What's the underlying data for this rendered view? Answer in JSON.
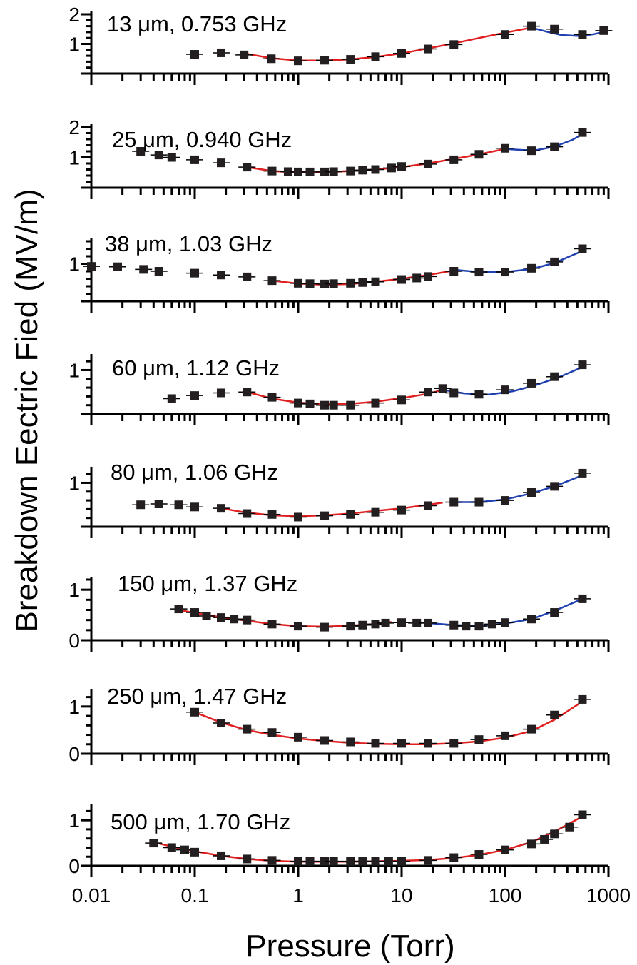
{
  "figure": {
    "ylabel": "Breakdown Eectric Fied (MV/m)",
    "xlabel": "Pressure (Torr)",
    "x_tick_labels": [
      "0.01",
      "0.1",
      "1",
      "10",
      "100",
      "1000"
    ]
  },
  "chart_data": [
    {
      "type": "scatter",
      "label": "13 μm, 0.753 GHz",
      "x_scale": "log",
      "xlim": [
        0.01,
        1000
      ],
      "ylim": [
        0,
        2
      ],
      "y_ticks": [
        1,
        2
      ],
      "points": {
        "x": [
          0.1,
          0.18,
          0.3,
          0.55,
          1.0,
          1.8,
          3.2,
          5.6,
          10,
          18,
          32,
          100,
          180,
          300,
          560,
          900
        ],
        "y": [
          0.65,
          0.7,
          0.63,
          0.5,
          0.43,
          0.45,
          0.48,
          0.57,
          0.68,
          0.83,
          0.98,
          1.32,
          1.6,
          1.5,
          1.32,
          1.45
        ]
      },
      "fits": [
        {
          "color": "#e02020",
          "x": [
            0.3,
            0.55,
            1.0,
            1.8,
            3.2,
            5.6,
            10,
            18,
            32,
            56,
            100,
            180
          ],
          "y": [
            0.68,
            0.52,
            0.44,
            0.44,
            0.48,
            0.56,
            0.68,
            0.85,
            1.02,
            1.2,
            1.38,
            1.55
          ]
        },
        {
          "color": "#2040b0",
          "x": [
            180,
            250,
            350,
            500,
            700,
            900
          ],
          "y": [
            1.55,
            1.42,
            1.3,
            1.27,
            1.32,
            1.4
          ]
        }
      ]
    },
    {
      "type": "scatter",
      "label": "25 μm, 0.940 GHz",
      "x_scale": "log",
      "xlim": [
        0.01,
        1000
      ],
      "ylim": [
        0,
        2
      ],
      "y_ticks": [
        1,
        2
      ],
      "points": {
        "x": [
          0.03,
          0.045,
          0.06,
          0.1,
          0.18,
          0.32,
          0.56,
          0.8,
          1.0,
          1.3,
          1.8,
          2.2,
          3.2,
          4.2,
          5.6,
          8,
          10,
          18,
          32,
          56,
          100,
          180,
          300,
          560
        ],
        "y": [
          1.2,
          1.08,
          1.0,
          0.92,
          0.82,
          0.68,
          0.55,
          0.53,
          0.52,
          0.52,
          0.52,
          0.53,
          0.55,
          0.58,
          0.6,
          0.65,
          0.7,
          0.78,
          0.92,
          1.1,
          1.3,
          1.22,
          1.35,
          1.82
        ]
      },
      "fits": [
        {
          "color": "#e02020",
          "x": [
            0.32,
            0.56,
            1.0,
            1.8,
            3.2,
            5.6,
            10,
            18,
            32,
            56,
            100
          ],
          "y": [
            0.68,
            0.55,
            0.5,
            0.51,
            0.55,
            0.6,
            0.68,
            0.8,
            0.95,
            1.1,
            1.28
          ]
        },
        {
          "color": "#2040b0",
          "x": [
            100,
            150,
            200,
            300,
            450,
            600
          ],
          "y": [
            1.28,
            1.24,
            1.24,
            1.35,
            1.58,
            1.82
          ]
        }
      ]
    },
    {
      "type": "scatter",
      "label": "38 μm, 1.03 GHz",
      "x_scale": "log",
      "xlim": [
        0.01,
        1000
      ],
      "ylim": [
        0,
        1.6
      ],
      "y_ticks": [
        1
      ],
      "points": {
        "x": [
          0.01,
          0.018,
          0.032,
          0.045,
          0.1,
          0.18,
          0.32,
          0.56,
          1.0,
          1.3,
          1.8,
          2.2,
          3.2,
          4.2,
          5.6,
          10,
          14,
          18,
          32,
          56,
          100,
          180,
          300,
          560
        ],
        "y": [
          0.93,
          0.92,
          0.85,
          0.8,
          0.75,
          0.7,
          0.65,
          0.55,
          0.48,
          0.47,
          0.46,
          0.47,
          0.48,
          0.5,
          0.52,
          0.58,
          0.62,
          0.66,
          0.8,
          0.78,
          0.78,
          0.88,
          1.05,
          1.4
        ]
      },
      "fits": [
        {
          "color": "#e02020",
          "x": [
            0.56,
            1.0,
            1.8,
            3.2,
            5.6,
            10,
            18,
            32
          ],
          "y": [
            0.55,
            0.47,
            0.44,
            0.46,
            0.52,
            0.6,
            0.7,
            0.82
          ]
        },
        {
          "color": "#2040b0",
          "x": [
            32,
            56,
            100,
            180,
            300,
            600
          ],
          "y": [
            0.84,
            0.78,
            0.78,
            0.86,
            1.02,
            1.38
          ]
        }
      ]
    },
    {
      "type": "scatter",
      "label": "60 μm, 1.12 GHz",
      "x_scale": "log",
      "xlim": [
        0.01,
        1000
      ],
      "ylim": [
        0,
        1.3
      ],
      "y_ticks": [
        1
      ],
      "points": {
        "x": [
          0.06,
          0.1,
          0.18,
          0.32,
          0.56,
          1.0,
          1.3,
          1.8,
          2.2,
          3.2,
          5.6,
          10,
          18,
          25,
          32,
          56,
          100,
          180,
          300,
          560
        ],
        "y": [
          0.35,
          0.42,
          0.48,
          0.5,
          0.38,
          0.25,
          0.23,
          0.2,
          0.2,
          0.2,
          0.25,
          0.32,
          0.5,
          0.58,
          0.48,
          0.45,
          0.55,
          0.7,
          0.85,
          1.12
        ]
      },
      "fits": [
        {
          "color": "#e02020",
          "x": [
            0.32,
            0.56,
            1.0,
            1.8,
            3.2,
            5.6,
            10,
            18,
            25
          ],
          "y": [
            0.5,
            0.35,
            0.26,
            0.22,
            0.23,
            0.28,
            0.36,
            0.46,
            0.55
          ]
        },
        {
          "color": "#2040b0",
          "x": [
            25,
            40,
            70,
            120,
            200,
            350,
            600
          ],
          "y": [
            0.55,
            0.47,
            0.44,
            0.52,
            0.66,
            0.86,
            1.1
          ]
        }
      ]
    },
    {
      "type": "scatter",
      "label": "80 μm, 1.06 GHz",
      "x_scale": "log",
      "xlim": [
        0.01,
        1000
      ],
      "ylim": [
        0,
        1.3
      ],
      "y_ticks": [
        1
      ],
      "points": {
        "x": [
          0.03,
          0.045,
          0.07,
          0.1,
          0.18,
          0.32,
          0.56,
          1.0,
          1.8,
          3.2,
          5.6,
          10,
          18,
          32,
          56,
          100,
          180,
          300,
          560
        ],
        "y": [
          0.5,
          0.52,
          0.5,
          0.45,
          0.42,
          0.3,
          0.28,
          0.22,
          0.25,
          0.28,
          0.33,
          0.38,
          0.48,
          0.56,
          0.56,
          0.6,
          0.78,
          0.92,
          1.22
        ]
      },
      "fits": [
        {
          "color": "#e02020",
          "x": [
            0.18,
            0.32,
            0.56,
            1.0,
            1.8,
            3.2,
            5.6,
            10,
            18,
            25
          ],
          "y": [
            0.42,
            0.32,
            0.26,
            0.24,
            0.26,
            0.3,
            0.36,
            0.42,
            0.5,
            0.55
          ]
        },
        {
          "color": "#2040b0",
          "x": [
            32,
            56,
            100,
            180,
            300,
            600
          ],
          "y": [
            0.56,
            0.56,
            0.62,
            0.76,
            0.92,
            1.2
          ]
        }
      ]
    },
    {
      "type": "scatter",
      "label": "150 μm, 1.37 GHz",
      "x_scale": "log",
      "xlim": [
        0.01,
        1000
      ],
      "ylim": [
        0,
        1.2
      ],
      "y_ticks": [
        0,
        1
      ],
      "points": {
        "x": [
          0.07,
          0.1,
          0.13,
          0.18,
          0.24,
          0.32,
          0.56,
          1.0,
          1.8,
          3.2,
          4.2,
          5.6,
          7,
          10,
          14,
          18,
          32,
          42,
          56,
          75,
          100,
          180,
          300,
          560
        ],
        "y": [
          0.62,
          0.55,
          0.48,
          0.45,
          0.42,
          0.4,
          0.32,
          0.28,
          0.26,
          0.28,
          0.3,
          0.32,
          0.34,
          0.35,
          0.34,
          0.34,
          0.3,
          0.28,
          0.28,
          0.32,
          0.35,
          0.42,
          0.55,
          0.82
        ]
      },
      "fits": [
        {
          "color": "#e02020",
          "x": [
            0.07,
            0.13,
            0.24,
            0.56,
            1.0,
            1.8,
            3.2,
            5.6,
            8
          ],
          "y": [
            0.6,
            0.5,
            0.42,
            0.32,
            0.28,
            0.27,
            0.29,
            0.32,
            0.36
          ]
        },
        {
          "color": "#2040b0",
          "x": [
            18,
            32,
            56,
            100,
            180,
            300,
            560
          ],
          "y": [
            0.34,
            0.3,
            0.29,
            0.33,
            0.42,
            0.58,
            0.82
          ]
        }
      ]
    },
    {
      "type": "scatter",
      "label": "250 μm, 1.47 GHz",
      "x_scale": "log",
      "xlim": [
        0.01,
        1000
      ],
      "ylim": [
        0,
        1.3
      ],
      "y_ticks": [
        0,
        1
      ],
      "points": {
        "x": [
          0.1,
          0.18,
          0.32,
          0.56,
          1.0,
          1.8,
          3.2,
          5.6,
          10,
          18,
          32,
          56,
          100,
          180,
          300,
          560
        ],
        "y": [
          0.88,
          0.65,
          0.52,
          0.45,
          0.35,
          0.28,
          0.25,
          0.22,
          0.22,
          0.22,
          0.22,
          0.3,
          0.38,
          0.52,
          0.82,
          1.15
        ]
      },
      "fits": [
        {
          "color": "#e02020",
          "x": [
            0.1,
            0.18,
            0.32,
            0.56,
            1.0,
            1.8,
            3.2,
            5.6,
            10,
            18,
            32,
            56,
            100,
            180,
            300,
            600
          ],
          "y": [
            0.88,
            0.66,
            0.5,
            0.4,
            0.32,
            0.27,
            0.23,
            0.21,
            0.2,
            0.2,
            0.22,
            0.26,
            0.34,
            0.48,
            0.72,
            1.15
          ]
        }
      ]
    },
    {
      "type": "scatter",
      "label": "500 μm, 1.70 GHz",
      "x_scale": "log",
      "xlim": [
        0.01,
        1000
      ],
      "ylim": [
        0,
        1.3
      ],
      "y_ticks": [
        0,
        1
      ],
      "points": {
        "x": [
          0.04,
          0.06,
          0.08,
          0.1,
          0.18,
          0.32,
          0.56,
          1.0,
          1.3,
          1.8,
          2.2,
          3.2,
          4.2,
          5.6,
          7.5,
          10,
          18,
          32,
          56,
          100,
          180,
          240,
          300,
          420,
          560
        ],
        "y": [
          0.5,
          0.4,
          0.35,
          0.3,
          0.22,
          0.15,
          0.12,
          0.1,
          0.1,
          0.1,
          0.1,
          0.1,
          0.1,
          0.1,
          0.1,
          0.1,
          0.12,
          0.18,
          0.25,
          0.35,
          0.48,
          0.58,
          0.7,
          0.85,
          1.12
        ]
      },
      "fits": [
        {
          "color": "#e02020",
          "x": [
            0.04,
            0.06,
            0.1,
            0.18,
            0.32,
            0.56,
            1.0,
            1.8,
            3.2,
            5.6,
            10,
            18,
            32,
            56,
            100,
            180,
            300,
            600
          ],
          "y": [
            0.52,
            0.42,
            0.32,
            0.22,
            0.15,
            0.11,
            0.09,
            0.09,
            0.09,
            0.1,
            0.11,
            0.13,
            0.17,
            0.24,
            0.35,
            0.52,
            0.75,
            1.12
          ]
        }
      ]
    }
  ]
}
